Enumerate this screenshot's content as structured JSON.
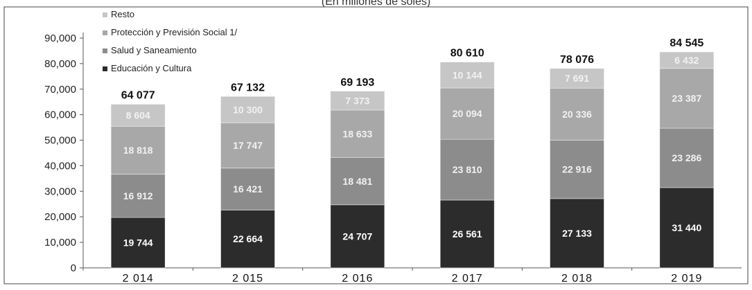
{
  "chart_data": {
    "type": "bar",
    "stacked": true,
    "title_fragment": "(En millones de soles)",
    "categories": [
      "2 014",
      "2 015",
      "2 016",
      "2 017",
      "2 018",
      "2 019"
    ],
    "series": [
      {
        "name": "Educación y Cultura",
        "values": [
          19744,
          22664,
          24707,
          26561,
          27133,
          31440
        ],
        "labels": [
          "19 744",
          "22 664",
          "24 707",
          "26 561",
          "27 133",
          "31 440"
        ],
        "color": "#2c2c2c"
      },
      {
        "name": "Salud y Saneamiento",
        "values": [
          16912,
          16421,
          18481,
          23810,
          22916,
          23286
        ],
        "labels": [
          "16 912",
          "16 421",
          "18 481",
          "23 810",
          "22 916",
          "23 286"
        ],
        "color": "#8c8c8c"
      },
      {
        "name": "Protección y Previsión Social 1/",
        "values": [
          18818,
          17747,
          18633,
          20094,
          20336,
          23387
        ],
        "labels": [
          "18 818",
          "17 747",
          "18 633",
          "20 094",
          "20 336",
          "23 387"
        ],
        "color": "#a8a8a8"
      },
      {
        "name": "Resto",
        "values": [
          8604,
          10300,
          7373,
          10144,
          7691,
          6432
        ],
        "labels": [
          "8 604",
          "10 300",
          "7 373",
          "10 144",
          "7 691",
          "6 432"
        ],
        "color": "#c6c6c6"
      }
    ],
    "totals": [
      "64 077",
      "67 132",
      "69 193",
      "80 610",
      "78 076",
      "84 545"
    ],
    "ylim": [
      0,
      90000
    ],
    "yticks": [
      "0",
      "10,000",
      "20,000",
      "30,000",
      "40,000",
      "50,000",
      "60,000",
      "70,000",
      "80,000",
      "90,000"
    ],
    "legend_order": [
      "Resto",
      "Protección y Previsión Social 1/",
      "Salud y Saneamiento",
      "Educación y Cultura"
    ],
    "legend_position": "top-left",
    "grid": false
  }
}
